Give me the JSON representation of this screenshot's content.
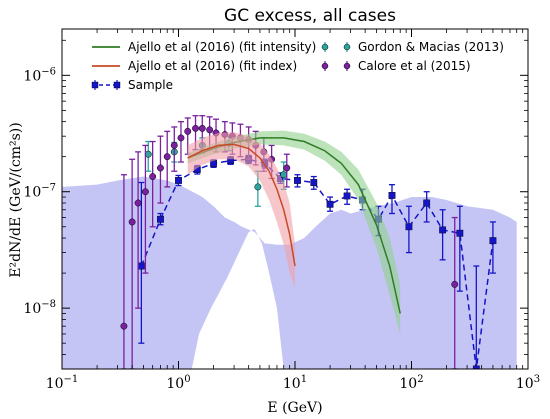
{
  "chart_data": {
    "type": "scatter",
    "title": "GC excess, all cases",
    "xlabel": "E (GeV)",
    "ylabel": "E²dN/dE (GeV/(cm²s))",
    "xscale": "log",
    "yscale": "log",
    "xlim": [
      0.1,
      1000
    ],
    "ylim": [
      3e-09,
      2.5e-06
    ],
    "xticks": [
      {
        "value": 0.1,
        "base": "10",
        "exp": "−1"
      },
      {
        "value": 1,
        "base": "10",
        "exp": "0"
      },
      {
        "value": 10,
        "base": "10",
        "exp": "1"
      },
      {
        "value": 100,
        "base": "10",
        "exp": "2"
      },
      {
        "value": 1000,
        "base": "10",
        "exp": "3"
      }
    ],
    "yticks": [
      {
        "value": 1e-08,
        "base": "10",
        "exp": "−8"
      },
      {
        "value": 1e-07,
        "base": "10",
        "exp": "−7"
      },
      {
        "value": 1e-06,
        "base": "10",
        "exp": "−6"
      }
    ],
    "legend_position": "top",
    "band": {
      "color": "#c5c5f5",
      "upper": [
        [
          0.1,
          1.1e-07
        ],
        [
          0.2,
          1.15e-07
        ],
        [
          0.3,
          1.25e-07
        ],
        [
          0.5,
          1.35e-07
        ],
        [
          0.8,
          1.25e-07
        ],
        [
          1,
          1.15e-07
        ],
        [
          1.2,
          1.05e-07
        ],
        [
          1.6,
          9e-08
        ],
        [
          2,
          7.5e-08
        ],
        [
          2.5,
          6e-08
        ],
        [
          3,
          5.5e-08
        ],
        [
          3.5,
          5e-08
        ],
        [
          4.5,
          4.5e-08
        ],
        [
          5,
          4e-08
        ],
        [
          5.5,
          3.6e-08
        ],
        [
          7,
          3.5e-08
        ],
        [
          9,
          3.5e-08
        ],
        [
          12,
          4e-08
        ],
        [
          15,
          5e-08
        ],
        [
          20,
          6.5e-08
        ],
        [
          25,
          7e-08
        ],
        [
          30,
          6.5e-08
        ],
        [
          40,
          7e-08
        ],
        [
          50,
          7.5e-08
        ],
        [
          70,
          8e-08
        ],
        [
          100,
          9e-08
        ],
        [
          150,
          9e-08
        ],
        [
          200,
          8.5e-08
        ],
        [
          300,
          7.5e-08
        ],
        [
          500,
          7e-08
        ],
        [
          700,
          6e-08
        ],
        [
          800,
          5.5e-08
        ]
      ],
      "notch": [
        [
          1.3,
          3e-09
        ],
        [
          1.5,
          6e-09
        ],
        [
          1.9,
          1e-08
        ],
        [
          2.6,
          1.8e-08
        ],
        [
          3.3,
          3e-08
        ],
        [
          4,
          4.5e-08
        ],
        [
          4.5,
          4.8e-08
        ],
        [
          5.2,
          3.6e-08
        ],
        [
          6,
          2e-08
        ],
        [
          7,
          1e-08
        ],
        [
          8,
          3e-09
        ]
      ]
    },
    "series": [
      {
        "name": "Sample",
        "color": "#1515c8",
        "marker": "square",
        "line": "dashed",
        "points": [
          {
            "x": 0.48,
            "y": 2.3e-08,
            "lo": 5e-09,
            "hi": 1.2e-07
          },
          {
            "x": 0.7,
            "y": 5.8e-08,
            "lo": 5.2e-08,
            "hi": 6.5e-08
          },
          {
            "x": 1.0,
            "y": 1.25e-07,
            "lo": 1.13e-07,
            "hi": 1.38e-07
          },
          {
            "x": 1.45,
            "y": 1.55e-07,
            "lo": 1.42e-07,
            "hi": 1.68e-07
          },
          {
            "x": 2.0,
            "y": 1.75e-07,
            "lo": 1.62e-07,
            "hi": 1.88e-07
          },
          {
            "x": 2.8,
            "y": 1.85e-07,
            "lo": 1.72e-07,
            "hi": 2e-07
          },
          {
            "x": 4.0,
            "y": 1.9e-07,
            "lo": 1.75e-07,
            "hi": 2.05e-07
          },
          {
            "x": 5.5,
            "y": 1.75e-07,
            "lo": 1.6e-07,
            "hi": 1.9e-07
          },
          {
            "x": 7.5,
            "y": 1.3e-07,
            "lo": 1.18e-07,
            "hi": 1.45e-07
          },
          {
            "x": 10.5,
            "y": 1.25e-07,
            "lo": 1.1e-07,
            "hi": 1.4e-07
          },
          {
            "x": 14.5,
            "y": 1.2e-07,
            "lo": 1.05e-07,
            "hi": 1.35e-07
          },
          {
            "x": 20,
            "y": 7.8e-08,
            "lo": 6.8e-08,
            "hi": 9e-08
          },
          {
            "x": 28,
            "y": 9.2e-08,
            "lo": 7.8e-08,
            "hi": 1.05e-07
          },
          {
            "x": 38,
            "y": 8.5e-08,
            "lo": 7e-08,
            "hi": 1.05e-07
          },
          {
            "x": 52,
            "y": 5.8e-08,
            "lo": 4.2e-08,
            "hi": 7.5e-08
          },
          {
            "x": 68,
            "y": 9.3e-08,
            "lo": 6.5e-08,
            "hi": 1.15e-07
          },
          {
            "x": 95,
            "y": 5e-08,
            "lo": 3e-08,
            "hi": 7.5e-08
          },
          {
            "x": 135,
            "y": 8e-08,
            "lo": 5.5e-08,
            "hi": 1e-07
          },
          {
            "x": 185,
            "y": 4.7e-08,
            "lo": 2.6e-08,
            "hi": 7e-08
          },
          {
            "x": 260,
            "y": 4.4e-08,
            "lo": 1.4e-08,
            "hi": 7.5e-08
          },
          {
            "x": 360,
            "y": 3e-09,
            "lo": 3e-09,
            "hi": 2.3e-08
          },
          {
            "x": 500,
            "y": 3.8e-08,
            "lo": 2e-08,
            "hi": 5.5e-08
          }
        ]
      },
      {
        "name": "Gordon & Macias (2013)",
        "color": "#2aa5a0",
        "marker": "circle",
        "line": "none",
        "points": [
          {
            "x": 0.55,
            "y": 2.1e-07,
            "lo": 1.5e-07,
            "hi": 2.7e-07
          },
          {
            "x": 0.92,
            "y": 2.2e-07,
            "lo": 1.8e-07,
            "hi": 2.65e-07
          },
          {
            "x": 1.6,
            "y": 2.5e-07,
            "lo": 2.15e-07,
            "hi": 2.9e-07
          },
          {
            "x": 2.7,
            "y": 2.6e-07,
            "lo": 2.25e-07,
            "hi": 3e-07
          },
          {
            "x": 4.8,
            "y": 1.1e-07,
            "lo": 7.5e-08,
            "hi": 1.5e-07
          },
          {
            "x": 8.0,
            "y": 1.4e-07,
            "lo": 1.05e-07,
            "hi": 1.8e-07
          }
        ]
      },
      {
        "name": "Calore et al (2015)",
        "color": "#7a20a0",
        "marker": "circle",
        "line": "none",
        "points": [
          {
            "x": 0.34,
            "y": 7e-09,
            "lo": 3e-09,
            "hi": 1.4e-07
          },
          {
            "x": 0.4,
            "y": 5.5e-08,
            "lo": 3e-09,
            "hi": 1.9e-07
          },
          {
            "x": 0.45,
            "y": 8e-08,
            "lo": 1e-08,
            "hi": 2.2e-07
          },
          {
            "x": 0.52,
            "y": 1e-07,
            "lo": 2e-08,
            "hi": 2.5e-07
          },
          {
            "x": 0.6,
            "y": 1.35e-07,
            "lo": 5e-08,
            "hi": 2.7e-07
          },
          {
            "x": 0.7,
            "y": 1.6e-07,
            "lo": 8e-08,
            "hi": 3e-07
          },
          {
            "x": 0.8,
            "y": 2e-07,
            "lo": 1.1e-07,
            "hi": 3.3e-07
          },
          {
            "x": 0.92,
            "y": 2.5e-07,
            "lo": 1.5e-07,
            "hi": 3.6e-07
          },
          {
            "x": 1.05,
            "y": 2.9e-07,
            "lo": 1.8e-07,
            "hi": 4e-07
          },
          {
            "x": 1.2,
            "y": 3.3e-07,
            "lo": 2.1e-07,
            "hi": 4.3e-07
          },
          {
            "x": 1.4,
            "y": 3.5e-07,
            "lo": 2.3e-07,
            "hi": 4.5e-07
          },
          {
            "x": 1.6,
            "y": 3.5e-07,
            "lo": 2.3e-07,
            "hi": 4.5e-07
          },
          {
            "x": 1.85,
            "y": 3.4e-07,
            "lo": 2.3e-07,
            "hi": 4.4e-07
          },
          {
            "x": 2.1,
            "y": 3.2e-07,
            "lo": 2.2e-07,
            "hi": 4.2e-07
          },
          {
            "x": 2.5,
            "y": 3.1e-07,
            "lo": 2.2e-07,
            "hi": 4e-07
          },
          {
            "x": 2.9,
            "y": 3e-07,
            "lo": 2.1e-07,
            "hi": 3.9e-07
          },
          {
            "x": 3.4,
            "y": 2.9e-07,
            "lo": 2e-07,
            "hi": 3.8e-07
          },
          {
            "x": 4.0,
            "y": 2.8e-07,
            "lo": 1.9e-07,
            "hi": 3.6e-07
          },
          {
            "x": 4.6,
            "y": 2.5e-07,
            "lo": 1.7e-07,
            "hi": 3.3e-07
          },
          {
            "x": 5.4,
            "y": 2.2e-07,
            "lo": 1.5e-07,
            "hi": 2.9e-07
          },
          {
            "x": 6.3,
            "y": 1.9e-07,
            "lo": 1.3e-07,
            "hi": 2.5e-07
          },
          {
            "x": 8.5,
            "y": 1.6e-07,
            "lo": 1.1e-07,
            "hi": 2.1e-07
          },
          {
            "x": 235,
            "y": 1.6e-08,
            "lo": 3e-09,
            "hi": 6e-08
          }
        ]
      },
      {
        "name": "Ajello et al (2016) (fit intensity)",
        "color": "#2e7d25",
        "band_color": "#8fd08a",
        "marker": "none",
        "line": "solid",
        "points": [
          {
            "x": 1.2,
            "y": 1.95e-07,
            "lo": 1.75e-07,
            "hi": 2.15e-07
          },
          {
            "x": 2,
            "y": 2.35e-07,
            "lo": 2.1e-07,
            "hi": 2.6e-07
          },
          {
            "x": 3,
            "y": 2.65e-07,
            "lo": 2.35e-07,
            "hi": 2.95e-07
          },
          {
            "x": 5,
            "y": 2.9e-07,
            "lo": 2.55e-07,
            "hi": 3.3e-07
          },
          {
            "x": 8,
            "y": 2.9e-07,
            "lo": 2.5e-07,
            "hi": 3.35e-07
          },
          {
            "x": 12,
            "y": 2.7e-07,
            "lo": 2.3e-07,
            "hi": 3.15e-07
          },
          {
            "x": 18,
            "y": 2.25e-07,
            "lo": 1.85e-07,
            "hi": 2.7e-07
          },
          {
            "x": 25,
            "y": 1.75e-07,
            "lo": 1.4e-07,
            "hi": 2.2e-07
          },
          {
            "x": 35,
            "y": 1.15e-07,
            "lo": 8.5e-08,
            "hi": 1.55e-07
          },
          {
            "x": 50,
            "y": 5.2e-08,
            "lo": 3.3e-08,
            "hi": 8e-08
          },
          {
            "x": 65,
            "y": 2.3e-08,
            "lo": 1.3e-08,
            "hi": 4e-08
          },
          {
            "x": 80,
            "y": 9e-09,
            "lo": 6e-09,
            "hi": 1.6e-08
          }
        ]
      },
      {
        "name": "Ajello et al (2016) (fit index)",
        "color": "#c84a25",
        "band_color": "#f0a0a8",
        "marker": "none",
        "line": "solid",
        "points": [
          {
            "x": 1.2,
            "y": 1.95e-07,
            "lo": 1.4e-07,
            "hi": 2.5e-07
          },
          {
            "x": 1.6,
            "y": 2.25e-07,
            "lo": 1.7e-07,
            "hi": 2.9e-07
          },
          {
            "x": 2.2,
            "y": 2.5e-07,
            "lo": 1.9e-07,
            "hi": 3.2e-07
          },
          {
            "x": 3,
            "y": 2.55e-07,
            "lo": 1.9e-07,
            "hi": 3.25e-07
          },
          {
            "x": 4,
            "y": 2.35e-07,
            "lo": 1.65e-07,
            "hi": 3e-07
          },
          {
            "x": 5,
            "y": 1.95e-07,
            "lo": 1.25e-07,
            "hi": 2.6e-07
          },
          {
            "x": 6,
            "y": 1.5e-07,
            "lo": 8.5e-08,
            "hi": 2.1e-07
          },
          {
            "x": 7,
            "y": 1.05e-07,
            "lo": 5.5e-08,
            "hi": 1.6e-07
          },
          {
            "x": 8,
            "y": 7e-08,
            "lo": 3.5e-08,
            "hi": 1.2e-07
          },
          {
            "x": 9,
            "y": 4.3e-08,
            "lo": 2e-08,
            "hi": 8e-08
          },
          {
            "x": 10,
            "y": 2.3e-08,
            "lo": 1.5e-08,
            "hi": 3.5e-08
          }
        ]
      }
    ]
  }
}
